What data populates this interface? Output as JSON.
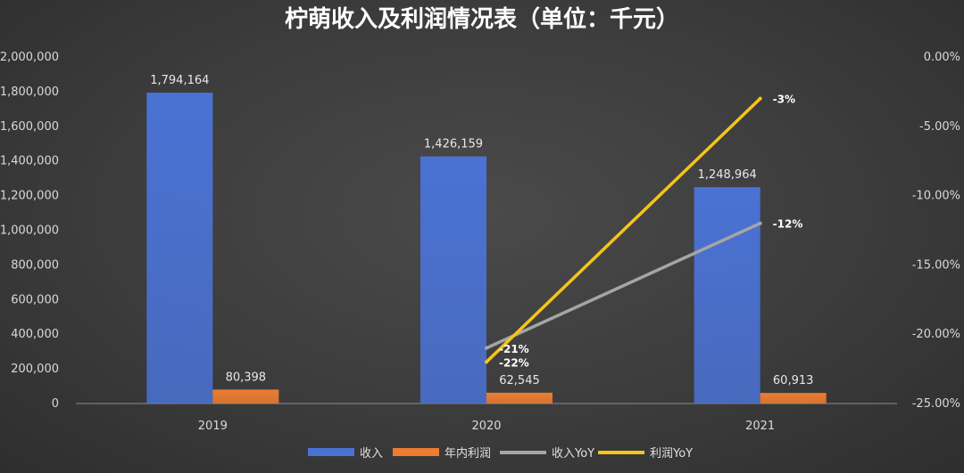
{
  "chart_data": {
    "type": "bar",
    "title": "柠萌收入及利润情况表（单位：千元）",
    "categories": [
      "2019",
      "2020",
      "2021"
    ],
    "series": [
      {
        "name": "收入",
        "kind": "bar",
        "axis": "left",
        "color": "#4a72d4",
        "values": [
          1794164,
          1426159,
          1248964
        ],
        "labels": [
          "1,794,164",
          "1,426,159",
          "1,248,964"
        ]
      },
      {
        "name": "年内利润",
        "kind": "bar",
        "axis": "left",
        "color": "#ed7d31",
        "values": [
          80398,
          62545,
          60913
        ],
        "labels": [
          "80,398",
          "62,545",
          "60,913"
        ]
      },
      {
        "name": "收入YoY",
        "kind": "line",
        "axis": "right",
        "color": "#a5a5a5",
        "values": [
          null,
          -21,
          -12
        ],
        "labels": [
          "",
          "-21%",
          "-12%"
        ]
      },
      {
        "name": "利润YoY",
        "kind": "line",
        "axis": "right",
        "color": "#f5c518",
        "values": [
          null,
          -22,
          -3
        ],
        "labels": [
          "",
          "-22%",
          "-3%"
        ]
      }
    ],
    "y_left": {
      "range": [
        0,
        2000000
      ],
      "ticks": [
        0,
        200000,
        400000,
        600000,
        800000,
        1000000,
        1200000,
        1400000,
        1600000,
        1800000,
        2000000
      ],
      "tick_labels": [
        "0",
        "200,000",
        "400,000",
        "600,000",
        "800,000",
        "1,000,000",
        "1,200,000",
        "1,400,000",
        "1,600,000",
        "1,800,000",
        "2,000,000"
      ]
    },
    "y_right": {
      "range": [
        -25,
        0
      ],
      "ticks": [
        0,
        -5,
        -10,
        -15,
        -20,
        -25
      ],
      "tick_labels": [
        "0.00%",
        "-5.00%",
        "-10.00%",
        "-15.00%",
        "-20.00%",
        "-25.00%"
      ]
    },
    "grid": false,
    "legend_position": "bottom"
  }
}
